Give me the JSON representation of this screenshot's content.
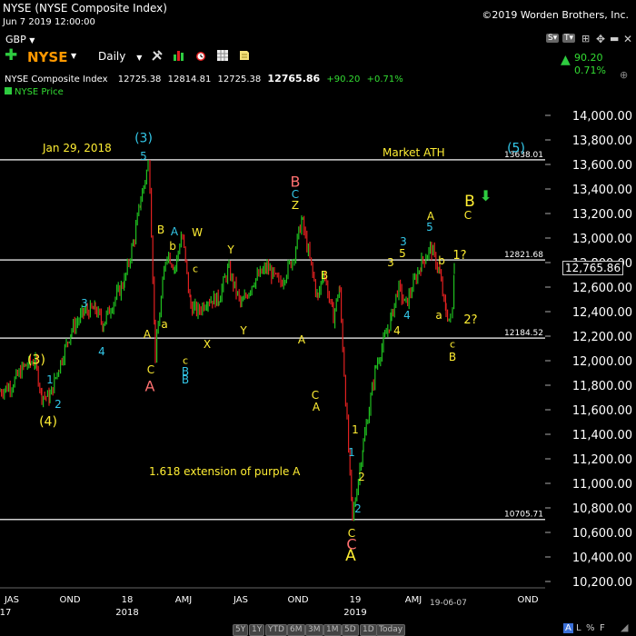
{
  "header": {
    "title": "NYSE (NYSE Composite Index)",
    "datetime": "Jun 7 2019 12:00:00",
    "copyright": "©2019 Worden Brothers, Inc.",
    "currency": "GBP",
    "symbol": "NYSE",
    "period": "Daily"
  },
  "quote": {
    "name": "NYSE Composite Index",
    "open": "12725.38",
    "high": "12814.81",
    "low": "12725.38",
    "close": "12765.86",
    "change": "+90.20",
    "change_pct": "+0.71%",
    "side_change": "90.20",
    "side_change_pct": "0.71%",
    "series_label": "NYSE Price",
    "last_price_label": "12,765.86"
  },
  "toolbar_right": [
    "S",
    "T"
  ],
  "range_buttons": [
    "5Y",
    "1Y",
    "YTD",
    "6M",
    "3M",
    "1M",
    "5D",
    "1D",
    "Today"
  ],
  "footer_right": {
    "a": "A",
    "l": "L",
    "pct": "%",
    "f": "F"
  },
  "date_marker": "19-06-07",
  "colors": {
    "background": "#000000",
    "up": "#1fbf1f",
    "down": "#e02020",
    "yellow": "#ffee33",
    "cyan": "#33c7e8",
    "pink": "#ff7070",
    "line": "#cccccc",
    "green_text": "#33dd33"
  },
  "chart_data": {
    "type": "line",
    "ylim": [
      10200,
      14000
    ],
    "xlim": [
      "2017-06-01",
      "2019-12-31"
    ],
    "y_ticks": [
      "10,200.00",
      "10,400.00",
      "10,600.00",
      "10,800.00",
      "11,000.00",
      "11,200.00",
      "11,400.00",
      "11,600.00",
      "11,800.00",
      "12,000.00",
      "12,200.00",
      "12,400.00",
      "12,600.00",
      "12,800.00",
      "13,000.00",
      "13,200.00",
      "13,400.00",
      "13,600.00",
      "13,800.00",
      "14,000.00"
    ],
    "y_tick_values": [
      10200,
      10400,
      10600,
      10800,
      11000,
      11200,
      11400,
      11600,
      11800,
      12000,
      12200,
      12400,
      12600,
      12800,
      13000,
      13200,
      13400,
      13600,
      13800,
      14000
    ],
    "x_ticks": [
      {
        "date": "2017-08-15",
        "label": "JAS",
        "sub": "17"
      },
      {
        "date": "2017-11-15",
        "label": "OND",
        "sub": ""
      },
      {
        "date": "2018-01-18",
        "label": "18",
        "sub": "2018"
      },
      {
        "date": "2018-05-01",
        "label": "AMJ",
        "sub": ""
      },
      {
        "date": "2018-08-15",
        "label": "JAS",
        "sub": ""
      },
      {
        "date": "2018-11-15",
        "label": "OND",
        "sub": ""
      },
      {
        "date": "2019-01-18",
        "label": "19",
        "sub": "2019"
      },
      {
        "date": "2019-05-01",
        "label": "AMJ",
        "sub": ""
      },
      {
        "date": "2019-11-15",
        "label": "OND",
        "sub": ""
      }
    ],
    "horizontal_levels": [
      {
        "value": 13638.01,
        "label": "13638.01"
      },
      {
        "value": 12821.68,
        "label": "12821.68"
      },
      {
        "value": 12184.52,
        "label": "12184.52"
      },
      {
        "value": 10705.71,
        "label": "10705.71"
      }
    ],
    "series": [
      {
        "values_note": "",
        "x": [
          "2017-06-01",
          "2017-06-20",
          "2017-07-10",
          "2017-07-28",
          "2017-08-08",
          "2017-08-21",
          "2017-09-05",
          "2017-09-25",
          "2017-10-16",
          "2017-11-03",
          "2017-11-15",
          "2017-12-04",
          "2017-12-20",
          "2018-01-05",
          "2018-01-15",
          "2018-01-29",
          "2018-02-08",
          "2018-02-26",
          "2018-03-12",
          "2018-03-23",
          "2018-04-06",
          "2018-04-18",
          "2018-05-03",
          "2018-05-21",
          "2018-06-06",
          "2018-06-27",
          "2018-07-17",
          "2018-08-08",
          "2018-08-29",
          "2018-09-20",
          "2018-10-03",
          "2018-10-29",
          "2018-11-07",
          "2018-11-23",
          "2018-12-03",
          "2018-12-24",
          "2019-01-10",
          "2019-01-31",
          "2019-02-25",
          "2019-03-08",
          "2019-03-20",
          "2019-04-15",
          "2019-04-30",
          "2019-05-13",
          "2019-05-24",
          "2019-06-03",
          "2019-06-07"
        ],
        "values": [
          11750,
          11800,
          11950,
          12000,
          11720,
          11700,
          11950,
          12250,
          12400,
          12420,
          12300,
          12500,
          12650,
          13000,
          13300,
          13638,
          12050,
          12900,
          12750,
          13050,
          12450,
          12400,
          12500,
          12500,
          12750,
          12450,
          12650,
          12760,
          12620,
          12850,
          13150,
          12500,
          12740,
          12350,
          12600,
          10706,
          11300,
          11950,
          12350,
          12600,
          12450,
          12800,
          12920,
          12740,
          12400,
          12300,
          12766
        ]
      }
    ],
    "annotations": [
      {
        "text": "Jan 29, 2018",
        "color": "yellow"
      },
      {
        "text": "Market ATH",
        "color": "yellow"
      },
      {
        "text": "1.618 extension of purple A",
        "color": "yellow"
      }
    ]
  },
  "wave_labels": [
    {
      "id": "w-3-top",
      "text": "(3)",
      "color": "cyan"
    },
    {
      "id": "w-5-top",
      "text": "5",
      "color": "cyan"
    },
    {
      "id": "w-5-right",
      "text": "(5)",
      "color": "cyan"
    },
    {
      "id": "w-B-pink",
      "text": "B",
      "color": "pink"
    },
    {
      "id": "w-C-cyan",
      "text": "C",
      "color": "cyan"
    },
    {
      "id": "w-Z",
      "text": "Z",
      "color": "yellow"
    },
    {
      "id": "w-B-big",
      "text": "B",
      "color": "yellow"
    },
    {
      "id": "w-C-right",
      "text": "C",
      "color": "yellow"
    },
    {
      "id": "w-A-1",
      "text": "A",
      "color": "yellow"
    },
    {
      "id": "w-5-r",
      "text": "5",
      "color": "cyan"
    },
    {
      "id": "w-1q",
      "text": "1?",
      "color": "yellow"
    },
    {
      "id": "w-3-r",
      "text": "3",
      "color": "cyan"
    },
    {
      "id": "w-5-y",
      "text": "5",
      "color": "yellow"
    },
    {
      "id": "w-3-y",
      "text": "3",
      "color": "yellow"
    },
    {
      "id": "w-b-y",
      "text": "b",
      "color": "yellow"
    },
    {
      "id": "w-B-ay",
      "text": "B",
      "color": "yellow"
    },
    {
      "id": "w-A-c",
      "text": "A",
      "color": "cyan"
    },
    {
      "id": "w-B-y2",
      "text": "B",
      "color": "yellow"
    },
    {
      "id": "w-W",
      "text": "W",
      "color": "yellow"
    },
    {
      "id": "w-Y",
      "text": "Y",
      "color": "yellow"
    },
    {
      "id": "w-b-2",
      "text": "b",
      "color": "yellow"
    },
    {
      "id": "w-c-1",
      "text": "c",
      "color": "yellow"
    },
    {
      "id": "w-3-l",
      "text": "3",
      "color": "cyan"
    },
    {
      "id": "w-4-l",
      "text": "4",
      "color": "cyan"
    },
    {
      "id": "w-a-1",
      "text": "a",
      "color": "yellow"
    },
    {
      "id": "w-A-2",
      "text": "A",
      "color": "yellow"
    },
    {
      "id": "w-X",
      "text": "X",
      "color": "yellow"
    },
    {
      "id": "w-Y-2",
      "text": "Y",
      "color": "yellow"
    },
    {
      "id": "w-c-2",
      "text": "c",
      "color": "yellow"
    },
    {
      "id": "w-B-c",
      "text": "B",
      "color": "cyan"
    },
    {
      "id": "w-A-3",
      "text": "A",
      "color": "yellow"
    },
    {
      "id": "w-4-y",
      "text": "4",
      "color": "yellow"
    },
    {
      "id": "w-4-c",
      "text": "4",
      "color": "cyan"
    },
    {
      "id": "w-a-2",
      "text": "a",
      "color": "yellow"
    },
    {
      "id": "w-2q",
      "text": "2?",
      "color": "yellow"
    },
    {
      "id": "w-c-3",
      "text": "c",
      "color": "yellow"
    },
    {
      "id": "w-B-3",
      "text": "B",
      "color": "yellow"
    },
    {
      "id": "w-3-ll",
      "text": "(3)",
      "color": "yellow"
    },
    {
      "id": "w-1-c",
      "text": "1",
      "color": "cyan"
    },
    {
      "id": "w-2-c",
      "text": "2",
      "color": "cyan"
    },
    {
      "id": "w-4-ll",
      "text": "(4)",
      "color": "yellow"
    },
    {
      "id": "w-C-y",
      "text": "C",
      "color": "yellow"
    },
    {
      "id": "w-A-pink",
      "text": "A",
      "color": "pink"
    },
    {
      "id": "w-B-cy2",
      "text": "B",
      "color": "cyan"
    },
    {
      "id": "w-C-A",
      "text": "C",
      "color": "yellow"
    },
    {
      "id": "w-A-4",
      "text": "A",
      "color": "yellow"
    },
    {
      "id": "w-1-y",
      "text": "1",
      "color": "yellow"
    },
    {
      "id": "w-1-c2",
      "text": "1",
      "color": "cyan"
    },
    {
      "id": "w-2-y",
      "text": "2",
      "color": "yellow"
    },
    {
      "id": "w-2-c2",
      "text": "2",
      "color": "cyan"
    },
    {
      "id": "w-C-bottom-y",
      "text": "C",
      "color": "yellow"
    },
    {
      "id": "w-C-bottom-p",
      "text": "C",
      "color": "pink"
    },
    {
      "id": "w-A-bottom",
      "text": "A",
      "color": "yellow"
    }
  ]
}
